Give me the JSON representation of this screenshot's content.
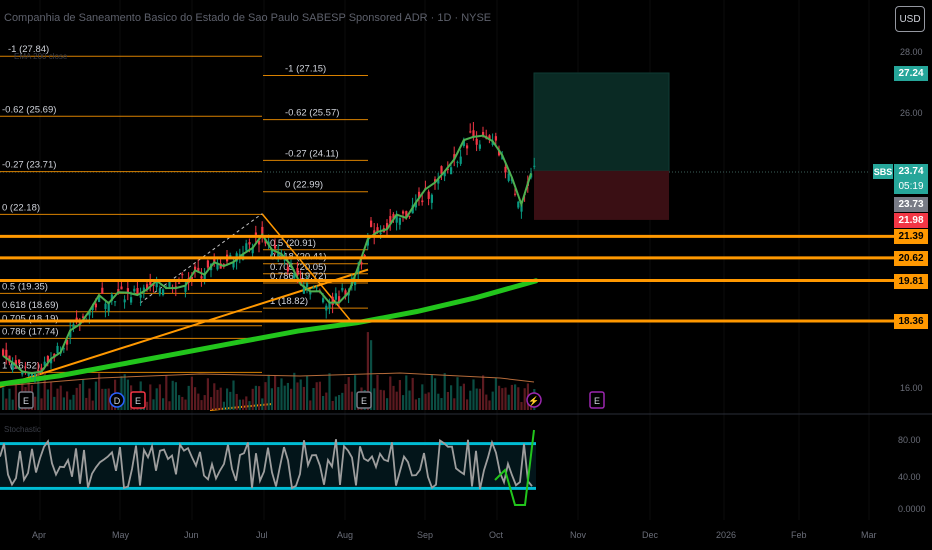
{
  "header": {
    "title": "Companhia de Saneamento Basico do Estado de Sao Paulo SABESP Sponsored ADR · 1D · NYSE",
    "indicator_label": "EMA 200 close",
    "currency_button": "USD",
    "ticker_badge": "SBS"
  },
  "colors": {
    "up": "#089981",
    "down": "#f23645",
    "fib": "#ff9800",
    "ema": "#22c51c",
    "stoch_band": "#00bcd4",
    "profit_zone": "#0a2a24",
    "loss_zone": "#3a0f14",
    "price_green": "#26a69a",
    "price_red": "#f23645",
    "price_orange": "#ff9800",
    "price_grey": "#787b86"
  },
  "chart_data": [
    {
      "type": "line",
      "title": "",
      "x_tick_labels": [
        "Apr",
        "May",
        "Jun",
        "Jul",
        "Aug",
        "Sep",
        "Oct",
        "Nov",
        "Dec",
        "2026",
        "Feb",
        "Mar"
      ],
      "y_tick_labels": [
        "28.00",
        "26.00",
        "16.00"
      ],
      "current_price": 23.74,
      "countdown": "05:19",
      "price_tags": [
        {
          "label": "27.24",
          "price": 27.24,
          "kind": "target"
        },
        {
          "label": "23.74",
          "price": 23.74,
          "kind": "last"
        },
        {
          "label": "23.73",
          "price": 23.73,
          "kind": "prev"
        },
        {
          "label": "21.98",
          "price": 21.98,
          "kind": "stop"
        },
        {
          "label": "21.39",
          "price": 21.39,
          "kind": "level"
        },
        {
          "label": "20.62",
          "price": 20.62,
          "kind": "level"
        },
        {
          "label": "19.81",
          "price": 19.81,
          "kind": "level"
        },
        {
          "label": "18.36",
          "price": 18.36,
          "kind": "level"
        }
      ],
      "fib_left": [
        {
          "label": "-1 (27.84)",
          "price": 27.84
        },
        {
          "label": "-0.62 (25.69)",
          "price": 25.69
        },
        {
          "label": "-0.27 (23.71)",
          "price": 23.71
        },
        {
          "label": "0 (22.18)",
          "price": 22.18
        },
        {
          "label": "0.5 (19.35)",
          "price": 19.35
        },
        {
          "label": "0.618 (18.69)",
          "price": 18.69
        },
        {
          "label": "0.705 (18.19)",
          "price": 18.19
        },
        {
          "label": "0.786 (17.74)",
          "price": 17.74
        },
        {
          "label": "1 (16.52)",
          "price": 16.52
        }
      ],
      "fib_right": [
        {
          "label": "-1 (27.15)",
          "price": 27.15
        },
        {
          "label": "-0.62 (25.57)",
          "price": 25.57
        },
        {
          "label": "-0.27 (24.11)",
          "price": 24.11
        },
        {
          "label": "0 (22.99)",
          "price": 22.99
        },
        {
          "label": "0.5 (20.91)",
          "price": 20.91
        },
        {
          "label": "0.618 (20.41)",
          "price": 20.41
        },
        {
          "label": "0.705 (20.05)",
          "price": 20.05
        },
        {
          "label": "0.786 (19.72)",
          "price": 19.72
        },
        {
          "label": "1 (18.82)",
          "price": 18.82
        }
      ],
      "horizontal_levels": [
        21.39,
        20.62,
        19.81,
        18.36
      ],
      "position": {
        "entry": 23.74,
        "target": 27.24,
        "stop": 21.98
      },
      "event_markers": [
        {
          "label": "E",
          "kind": "earnings"
        },
        {
          "label": "D",
          "kind": "dividend"
        },
        {
          "label": "E",
          "kind": "earnings"
        },
        {
          "label": "E",
          "kind": "earnings"
        },
        {
          "label": "⚡",
          "kind": "split"
        },
        {
          "label": "E",
          "kind": "future-earnings"
        }
      ],
      "series": [
        {
          "name": "EMA 200 close",
          "values": [
            16.1,
            16.4,
            16.8,
            17.2,
            17.6,
            18.0,
            18.3,
            18.7,
            19.2,
            19.8
          ]
        }
      ]
    },
    {
      "type": "line",
      "title": "Stochastic",
      "y_tick_labels": [
        "80.00",
        "40.00",
        "0.0000"
      ],
      "band": [
        20,
        80
      ]
    }
  ]
}
